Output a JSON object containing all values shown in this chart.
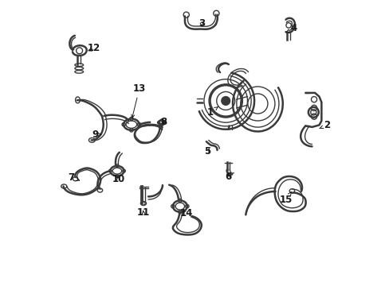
{
  "bg_color": "#ffffff",
  "line_color": "#3a3a3a",
  "label_color": "#1a1a1a",
  "lw_main": 1.8,
  "lw_thin": 1.0,
  "lw_thick": 2.2,
  "label_positions": {
    "1": [
      0.558,
      0.598,
      0.575,
      0.61
    ],
    "2": [
      0.958,
      0.558,
      0.93,
      0.538
    ],
    "3": [
      0.528,
      0.922,
      0.524,
      0.908
    ],
    "4": [
      0.84,
      0.908,
      0.818,
      0.9
    ],
    "5": [
      0.548,
      0.468,
      0.548,
      0.482
    ],
    "6": [
      0.62,
      0.378,
      0.618,
      0.392
    ],
    "7": [
      0.072,
      0.372,
      0.09,
      0.368
    ],
    "8": [
      0.395,
      0.572,
      0.395,
      0.558
    ],
    "9": [
      0.155,
      0.528,
      0.172,
      0.528
    ],
    "10": [
      0.238,
      0.368,
      0.238,
      0.382
    ],
    "11": [
      0.322,
      0.252,
      0.318,
      0.268
    ],
    "12": [
      0.148,
      0.832,
      0.13,
      0.822
    ],
    "13": [
      0.31,
      0.692,
      0.308,
      0.678
    ],
    "14": [
      0.468,
      0.258,
      0.452,
      0.268
    ],
    "15": [
      0.822,
      0.298,
      0.835,
      0.312
    ]
  }
}
